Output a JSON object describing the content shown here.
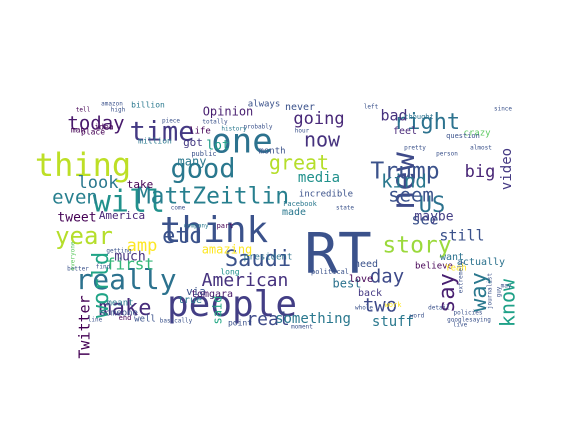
{
  "words": [
    {
      "text": "RT",
      "color": "#3b528b"
    },
    {
      "text": "think",
      "color": "#3b528b"
    },
    {
      "text": "people",
      "color": "#433e85"
    },
    {
      "text": "one",
      "color": "#2c728e"
    },
    {
      "text": "new",
      "color": "#3e4a89"
    },
    {
      "text": "thing",
      "color": "#bddf26"
    },
    {
      "text": "will",
      "color": "#21918c"
    },
    {
      "text": "really",
      "color": "#2c728e"
    },
    {
      "text": "good",
      "color": "#2a788e"
    },
    {
      "text": "time",
      "color": "#443983"
    },
    {
      "text": "story",
      "color": "#9bd93c"
    },
    {
      "text": "Trump",
      "color": "#3b528b"
    },
    {
      "text": "MattZeitlin",
      "color": "#277f8e"
    },
    {
      "text": "Saudi",
      "color": "#3b528b"
    },
    {
      "text": "right",
      "color": "#2c728e"
    },
    {
      "text": "year",
      "color": "#b5de2b"
    },
    {
      "text": "make",
      "color": "#472d7b"
    },
    {
      "text": "etc",
      "color": "#3b528b"
    },
    {
      "text": "US",
      "color": "#2c728e"
    },
    {
      "text": "world",
      "color": "#20a486"
    },
    {
      "text": "way",
      "color": "#2a788e"
    },
    {
      "text": "great",
      "color": "#b5de2b"
    },
    {
      "text": "say",
      "color": "#481f70"
    },
    {
      "text": "know",
      "color": "#1fa188"
    },
    {
      "text": "kind",
      "color": "#2a788e"
    },
    {
      "text": "now",
      "color": "#46327e"
    },
    {
      "text": "day",
      "color": "#3e4a89"
    },
    {
      "text": "even",
      "color": "#277f8e"
    },
    {
      "text": "American",
      "color": "#46327e"
    },
    {
      "text": "today",
      "color": "#481a6c"
    },
    {
      "text": "seem",
      "color": "#3b528b"
    },
    {
      "text": "look",
      "color": "#2a788e"
    },
    {
      "text": "going",
      "color": "#482878"
    },
    {
      "text": "Twitter",
      "color": "#440154"
    },
    {
      "text": "two",
      "color": "#3e4a89"
    },
    {
      "text": "real",
      "color": "#3e4a89"
    },
    {
      "text": "amp",
      "color": "#fde725"
    },
    {
      "text": "first",
      "color": "#35b779"
    },
    {
      "text": "big",
      "color": "#482576"
    },
    {
      "text": "bad",
      "color": "#46327e"
    },
    {
      "text": "see",
      "color": "#3b528b"
    },
    {
      "text": "still",
      "color": "#3b528b"
    },
    {
      "text": "video",
      "color": "#443983"
    },
    {
      "text": "maybe",
      "color": "#433e85"
    },
    {
      "text": "media",
      "color": "#21918c"
    },
    {
      "text": "tweet",
      "color": "#440154"
    },
    {
      "text": "stuff",
      "color": "#2a788e"
    },
    {
      "text": "something",
      "color": "#2a788e"
    },
    {
      "text": "many",
      "color": "#2a788e"
    },
    {
      "text": "lot",
      "color": "#1f9e89"
    },
    {
      "text": "much",
      "color": "#46327e"
    },
    {
      "text": "amazing",
      "color": "#fde725"
    },
    {
      "text": "said",
      "color": "#22a884"
    },
    {
      "text": "Opinion",
      "color": "#481f70"
    },
    {
      "text": "never",
      "color": "#3b528b"
    },
    {
      "text": "America",
      "color": "#482878"
    },
    {
      "text": "via",
      "color": "#3b528b"
    },
    {
      "text": "best",
      "color": "#2c728e"
    },
    {
      "text": "back",
      "color": "#443983"
    },
    {
      "text": "made",
      "color": "#2a788e"
    },
    {
      "text": "take",
      "color": "#440154"
    },
    {
      "text": "love",
      "color": "#440154"
    },
    {
      "text": "need",
      "color": "#3b528b"
    },
    {
      "text": "actually",
      "color": "#2c728e"
    },
    {
      "text": "want",
      "color": "#2c728e"
    },
    {
      "text": "got",
      "color": "#443983"
    },
    {
      "text": "tomgara",
      "color": "#481a6c"
    },
    {
      "text": "true",
      "color": "#2a788e"
    },
    {
      "text": "feel",
      "color": "#482878"
    },
    {
      "text": "incredible",
      "color": "#3b528b"
    },
    {
      "text": "believe",
      "color": "#440154"
    },
    {
      "text": "president",
      "color": "#2c728e"
    },
    {
      "text": "always",
      "color": "#3b528b"
    },
    {
      "text": "month",
      "color": "#3b528b"
    },
    {
      "text": "crazy",
      "color": "#5ec962"
    },
    {
      "text": "life",
      "color": "#440154"
    },
    {
      "text": "long",
      "color": "#21918c"
    },
    {
      "text": "Yeah",
      "color": "#fde725"
    },
    {
      "text": "well",
      "color": "#3b528b"
    },
    {
      "text": "point",
      "color": "#3b528b"
    },
    {
      "text": "meant",
      "color": "#2a788e"
    },
    {
      "text": "someone",
      "color": "#3b528b"
    },
    {
      "text": "idea",
      "color": "#440154"
    },
    {
      "text": "place",
      "color": "#440154"
    },
    {
      "text": "man",
      "color": "#440154"
    },
    {
      "text": "billion",
      "color": "#2a788e"
    },
    {
      "text": "amazon",
      "color": "#3b528b"
    },
    {
      "text": "tell",
      "color": "#440154"
    },
    {
      "text": "million",
      "color": "#2a788e"
    },
    {
      "text": "Facebook",
      "color": "#2a788e"
    },
    {
      "text": "political",
      "color": "#3b528b"
    },
    {
      "text": "public",
      "color": "#3b528b"
    },
    {
      "text": "thought",
      "color": "#2c728e"
    },
    {
      "text": "question",
      "color": "#3b528b"
    },
    {
      "text": "work",
      "color": "#fde725"
    },
    {
      "text": "whole",
      "color": "#3b528b"
    },
    {
      "text": "totally",
      "color": "#3b528b"
    },
    {
      "text": "probably",
      "color": "#3b528b"
    },
    {
      "text": "history",
      "color": "#2a788e"
    },
    {
      "text": "company",
      "color": "#2a788e"
    },
    {
      "text": "part",
      "color": "#440154"
    },
    {
      "text": "piece",
      "color": "#3b528b"
    },
    {
      "text": "high",
      "color": "#3b528b"
    },
    {
      "text": "almost",
      "color": "#3b528b"
    },
    {
      "text": "line",
      "color": "#3b528b"
    },
    {
      "text": "find",
      "color": "#3b528b"
    },
    {
      "text": "getting",
      "color": "#3b528b"
    },
    {
      "text": "better",
      "color": "#3b528b"
    },
    {
      "text": "everyone",
      "color": "#5ec962"
    },
    {
      "text": "since",
      "color": "#3b528b"
    },
    {
      "text": "extremely",
      "color": "#3b528b"
    },
    {
      "text": "saying",
      "color": "#3b528b"
    },
    {
      "text": "journalist",
      "color": "#3b528b"
    },
    {
      "text": "guy",
      "color": "#3b528b"
    },
    {
      "text": "may",
      "color": "#3b528b"
    },
    {
      "text": "word",
      "color": "#3b528b"
    },
    {
      "text": "moment",
      "color": "#3b528b"
    },
    {
      "text": "basically",
      "color": "#3b528b"
    },
    {
      "text": "policies",
      "color": "#3b528b"
    },
    {
      "text": "left",
      "color": "#3b528b"
    },
    {
      "text": "live",
      "color": "#3b528b"
    },
    {
      "text": "person",
      "color": "#3b528b"
    },
    {
      "text": "end",
      "color": "#440154"
    },
    {
      "text": "come",
      "color": "#3b528b"
    },
    {
      "text": "hour",
      "color": "#3b528b"
    },
    {
      "text": "state",
      "color": "#3b528b"
    },
    {
      "text": "detail",
      "color": "#3b528b"
    },
    {
      "text": "google",
      "color": "#3b528b"
    },
    {
      "text": "pretty",
      "color": "#3b528b"
    }
  ]
}
